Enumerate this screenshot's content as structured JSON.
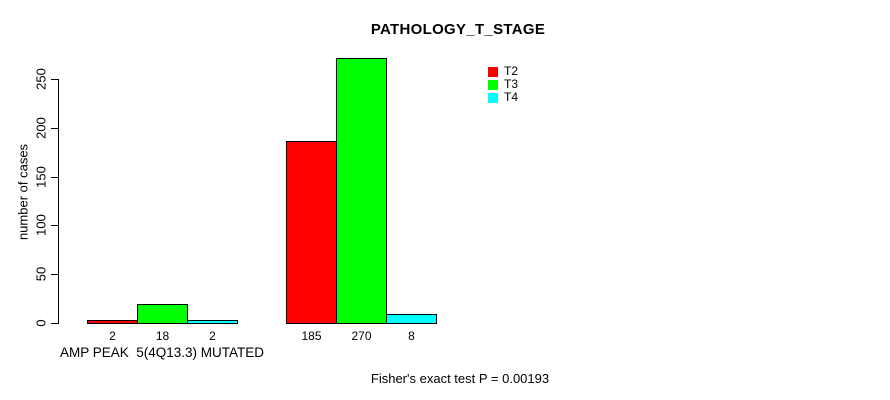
{
  "chart_data": {
    "type": "bar",
    "title": "PATHOLOGY_T_STAGE",
    "ylabel": "number of cases",
    "xlabel": "",
    "categories": [
      "AMP PEAK  5(4Q13.3) MUTATED",
      ""
    ],
    "series": [
      {
        "name": "T2",
        "color": "#ff0000",
        "values": [
          2,
          185
        ]
      },
      {
        "name": "T3",
        "color": "#00ff00",
        "values": [
          18,
          270
        ]
      },
      {
        "name": "T4",
        "color": "#00ffff",
        "values": [
          2,
          8
        ]
      }
    ],
    "show_value_labels": true,
    "value_labels": [
      [
        "2",
        "18",
        "2"
      ],
      [
        "185",
        "270",
        "8"
      ]
    ],
    "yticks": [
      0,
      50,
      100,
      150,
      200,
      250
    ],
    "ylim": [
      0,
      270
    ],
    "grid": false,
    "legend_position": "top-right",
    "annotation": "Fisher's exact test P = 0.00193",
    "colors": {
      "background": "#ffffff",
      "text": "#000000",
      "bar_border": "#000000"
    }
  }
}
